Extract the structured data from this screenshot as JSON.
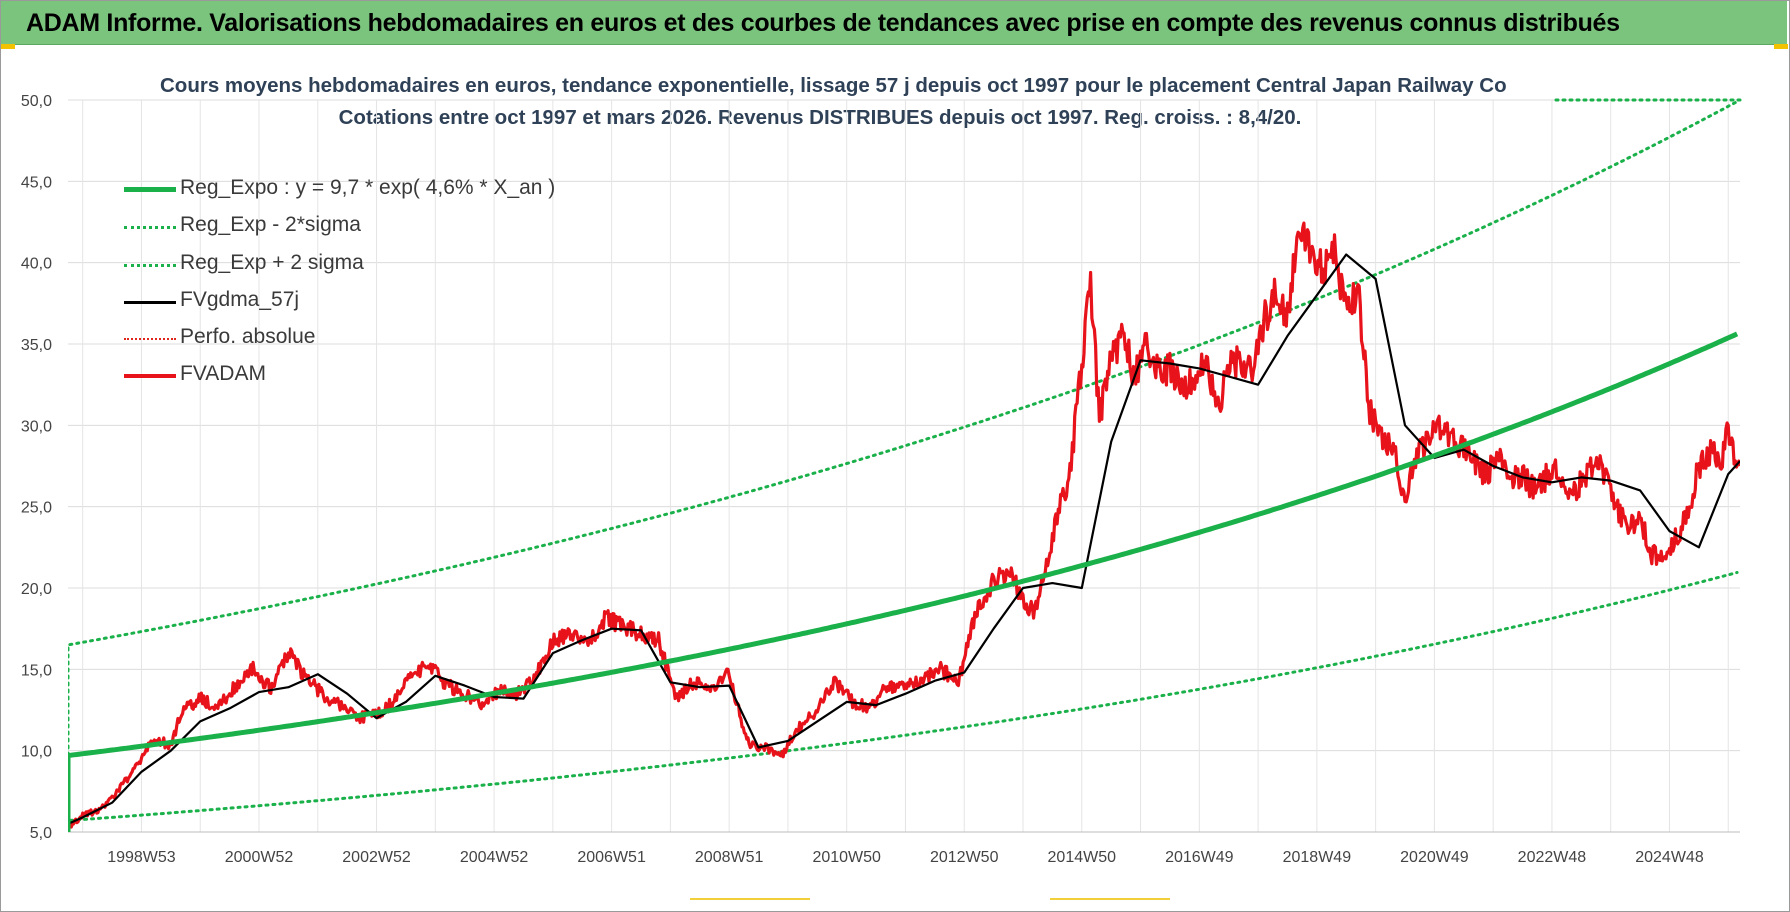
{
  "banner": {
    "title": "ADAM Informe. Valorisations hebdomadaires en euros et des courbes de tendances avec prise en compte des revenus connus distribués",
    "color": "#7bc47e"
  },
  "chart_data": {
    "type": "line",
    "title": "Cours moyens hebdomadaires en euros, tendance exponentielle, lissage 57 j depuis oct 1997 pour le placement Central Japan Railway Co",
    "subtitle": "Cotations entre oct 1997 et mars 2026.  Revenus DISTRIBUES depuis oct 1997. Reg. croiss. : 8,4/20.",
    "xlabel": "",
    "ylabel": "",
    "x_range": [
      1997.75,
      2026.2
    ],
    "ylim": [
      5,
      50
    ],
    "y_ticks": [
      "5,0",
      "10,0",
      "15,0",
      "20,0",
      "25,0",
      "30,0",
      "35,0",
      "40,0",
      "45,0",
      "50,0"
    ],
    "x_ticks": [
      {
        "label": "1998W53",
        "x": 1999.0
      },
      {
        "label": "2000W52",
        "x": 2001.0
      },
      {
        "label": "2002W52",
        "x": 2003.0
      },
      {
        "label": "2004W52",
        "x": 2005.0
      },
      {
        "label": "2006W51",
        "x": 2007.0
      },
      {
        "label": "2008W51",
        "x": 2009.0
      },
      {
        "label": "2010W50",
        "x": 2011.0
      },
      {
        "label": "2012W50",
        "x": 2013.0
      },
      {
        "label": "2014W50",
        "x": 2015.0
      },
      {
        "label": "2016W49",
        "x": 2017.0
      },
      {
        "label": "2018W49",
        "x": 2019.0
      },
      {
        "label": "2020W49",
        "x": 2021.0
      },
      {
        "label": "2022W48",
        "x": 2023.0
      },
      {
        "label": "2024W48",
        "x": 2025.0
      }
    ],
    "grid": true,
    "legend_position": "top-left",
    "series": [
      {
        "name": "Reg_Expo : y = 9,7 * exp( 4,6% *  X_an )",
        "color": "#1ab04a",
        "style": "solid-thick",
        "x": [
          1997.75,
          1997.75,
          2026.2
        ],
        "y": [
          5.0,
          9.7,
          35.7
        ],
        "note_formula": "9.7*exp(0.046*t)"
      },
      {
        "name": "Reg_Exp - 2*sigma",
        "color": "#1ab04a",
        "style": "dotted",
        "x": [
          1997.75,
          1997.75,
          2026.2
        ],
        "y": [
          5.0,
          5.7,
          21.0
        ]
      },
      {
        "name": "Reg_Exp + 2 sigma",
        "color": "#1ab04a",
        "style": "dotted",
        "x": [
          1997.75,
          1997.75,
          2026.2
        ],
        "y": [
          5.0,
          16.5,
          50.0
        ]
      },
      {
        "name": "FVgdma_57j",
        "color": "#000000",
        "style": "solid",
        "x": [
          1997.75,
          1998.0,
          1998.5,
          1999.0,
          1999.5,
          2000.0,
          2000.5,
          2001.0,
          2001.5,
          2002.0,
          2002.5,
          2003.0,
          2003.5,
          2004.0,
          2004.5,
          2005.0,
          2005.5,
          2006.0,
          2006.5,
          2007.0,
          2007.5,
          2008.0,
          2008.5,
          2009.0,
          2009.5,
          2010.0,
          2010.5,
          2011.0,
          2011.5,
          2012.0,
          2012.5,
          2013.0,
          2013.5,
          2014.0,
          2014.5,
          2015.0,
          2015.5,
          2016.0,
          2016.5,
          2017.0,
          2017.5,
          2018.0,
          2018.5,
          2019.0,
          2019.5,
          2020.0,
          2020.5,
          2021.0,
          2021.5,
          2022.0,
          2022.5,
          2023.0,
          2023.5,
          2024.0,
          2024.5,
          2025.0,
          2025.5,
          2026.0,
          2026.2
        ],
        "y": [
          5.5,
          5.9,
          6.8,
          8.7,
          10.0,
          11.8,
          12.6,
          13.6,
          13.9,
          14.7,
          13.5,
          12.0,
          13.0,
          14.6,
          14.0,
          13.3,
          13.2,
          16.0,
          16.8,
          17.5,
          17.4,
          14.2,
          13.9,
          14.0,
          10.2,
          10.6,
          11.8,
          13.0,
          12.8,
          13.5,
          14.3,
          14.8,
          17.5,
          20.0,
          20.3,
          20.0,
          29.0,
          34.0,
          33.8,
          33.5,
          33.0,
          32.5,
          35.5,
          38.0,
          40.5,
          39.0,
          30.0,
          28.0,
          28.5,
          27.5,
          26.8,
          26.5,
          26.8,
          26.6,
          26.0,
          23.5,
          22.5,
          27.0,
          27.8
        ]
      },
      {
        "name": "Perfo. absolue",
        "color": "#e0261b",
        "style": "dotted",
        "x": [],
        "y": []
      },
      {
        "name": "FVADAM",
        "color": "#e8121b",
        "style": "solid-thick",
        "x": [
          1997.75,
          1997.9,
          1998.0,
          1998.3,
          1998.6,
          1998.9,
          1999.2,
          1999.5,
          1999.7,
          2000.0,
          2000.3,
          2000.6,
          2000.9,
          2001.2,
          2001.5,
          2001.8,
          2002.1,
          2002.4,
          2002.7,
          2003.0,
          2003.3,
          2003.6,
          2003.9,
          2004.2,
          2004.5,
          2004.8,
          2005.1,
          2005.4,
          2005.7,
          2006.0,
          2006.3,
          2006.6,
          2006.9,
          2007.2,
          2007.5,
          2007.8,
          2008.1,
          2008.4,
          2008.7,
          2009.0,
          2009.3,
          2009.6,
          2009.9,
          2010.2,
          2010.5,
          2010.8,
          2011.1,
          2011.4,
          2011.7,
          2012.0,
          2012.3,
          2012.6,
          2012.9,
          2013.2,
          2013.5,
          2013.8,
          2014.0,
          2014.2,
          2014.4,
          2014.6,
          2014.8,
          2015.0,
          2015.15,
          2015.3,
          2015.5,
          2015.7,
          2015.9,
          2016.1,
          2016.3,
          2016.5,
          2016.7,
          2016.9,
          2017.1,
          2017.3,
          2017.5,
          2017.7,
          2017.9,
          2018.1,
          2018.3,
          2018.5,
          2018.7,
          2018.9,
          2019.1,
          2019.3,
          2019.5,
          2019.7,
          2019.9,
          2020.1,
          2020.3,
          2020.5,
          2020.7,
          2020.9,
          2021.1,
          2021.3,
          2021.5,
          2021.7,
          2021.9,
          2022.1,
          2022.3,
          2022.5,
          2022.7,
          2022.9,
          2023.1,
          2023.3,
          2023.5,
          2023.7,
          2023.9,
          2024.1,
          2024.3,
          2024.5,
          2024.7,
          2024.9,
          2025.1,
          2025.3,
          2025.5,
          2025.7,
          2025.9,
          2026.0,
          2026.1,
          2026.2
        ],
        "y": [
          5.3,
          5.7,
          6.0,
          6.4,
          7.5,
          9.0,
          10.6,
          10.4,
          12.5,
          13.2,
          12.6,
          14.0,
          15.0,
          13.8,
          16.0,
          14.5,
          13.4,
          12.8,
          12.0,
          12.2,
          13.0,
          14.8,
          15.2,
          14.0,
          13.5,
          12.8,
          13.8,
          13.5,
          14.5,
          16.8,
          17.2,
          16.5,
          18.2,
          17.6,
          17.2,
          16.8,
          13.2,
          14.2,
          13.8,
          14.8,
          10.5,
          10.2,
          9.8,
          11.5,
          12.5,
          14.2,
          13.0,
          12.6,
          14.0,
          13.8,
          14.5,
          15.0,
          14.2,
          18.5,
          20.5,
          21.0,
          19.2,
          18.5,
          21.5,
          24.5,
          27.0,
          34.0,
          38.5,
          30.5,
          34.0,
          35.5,
          33.0,
          34.8,
          33.2,
          33.5,
          32.5,
          32.8,
          33.8,
          31.0,
          33.5,
          34.0,
          33.0,
          36.5,
          38.0,
          37.0,
          42.0,
          40.5,
          39.5,
          40.8,
          37.0,
          38.5,
          31.0,
          29.5,
          28.5,
          25.5,
          28.0,
          29.5,
          30.0,
          29.0,
          28.5,
          27.5,
          27.0,
          28.0,
          26.5,
          27.0,
          26.0,
          26.8,
          27.2,
          25.5,
          26.5,
          27.8,
          27.0,
          25.0,
          23.5,
          24.5,
          22.0,
          21.8,
          23.0,
          24.5,
          27.5,
          28.5,
          28.0,
          29.6,
          28.2,
          27.5
        ]
      }
    ]
  }
}
